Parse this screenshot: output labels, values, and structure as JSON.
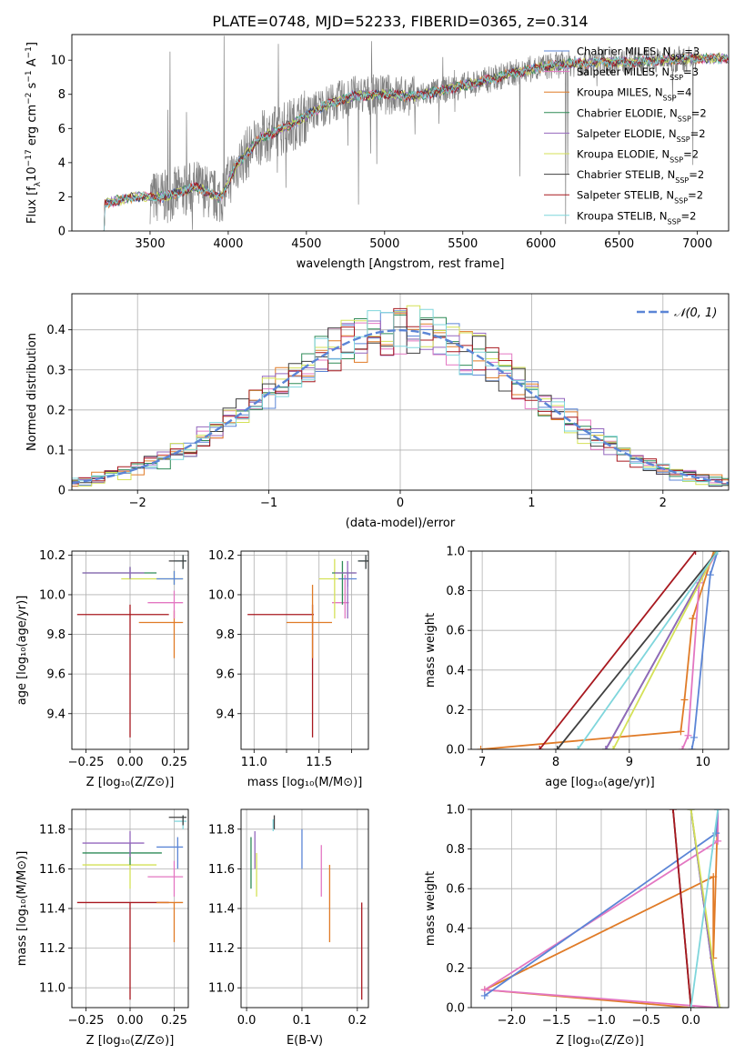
{
  "figure": {
    "title": "PLATE=0748, MJD=52233, FIBERID=0365, z=0.314"
  },
  "colors": {
    "data": "#808080",
    "gauss": "#5b85d6",
    "chabrier_miles": "#5b85d6",
    "salpeter_miles": "#e377c2",
    "kroupa_miles": "#e07b27",
    "chabrier_elodie": "#2e8b57",
    "salpeter_elodie": "#9467bd",
    "kroupa_elodie": "#d4e157",
    "chabrier_stelib": "#404040",
    "salpeter_stelib": "#a8181f",
    "kroupa_stelib": "#7fd6dc"
  },
  "legend_spectrum": [
    {
      "label": "Chabrier MILES, N",
      "sub": "SSP",
      "suffix": "=3",
      "color": "#5b85d6"
    },
    {
      "label": "Salpeter MILES, N",
      "sub": "SSP",
      "suffix": "=3",
      "color": "#e377c2"
    },
    {
      "label": "Kroupa MILES, N",
      "sub": "SSP",
      "suffix": "=4",
      "color": "#e07b27"
    },
    {
      "label": "Chabrier ELODIE, N",
      "sub": "SSP",
      "suffix": "=2",
      "color": "#2e8b57"
    },
    {
      "label": "Salpeter ELODIE, N",
      "sub": "SSP",
      "suffix": "=2",
      "color": "#9467bd"
    },
    {
      "label": "Kroupa ELODIE, N",
      "sub": "SSP",
      "suffix": "=2",
      "color": "#d4e157"
    },
    {
      "label": "Chabrier STELIB, N",
      "sub": "SSP",
      "suffix": "=2",
      "color": "#404040"
    },
    {
      "label": "Salpeter STELIB, N",
      "sub": "SSP",
      "suffix": "=2",
      "color": "#a8181f"
    },
    {
      "label": "Kroupa STELIB, N",
      "sub": "SSP",
      "suffix": "=2",
      "color": "#7fd6dc"
    }
  ],
  "legend_hist": {
    "label": "𝒩(0, 1)"
  },
  "chart_data": [
    {
      "type": "line",
      "name": "spectrum",
      "xlabel": "wavelength [Angstrom, rest frame]",
      "ylabel_parts": [
        "Flux [f",
        "λ",
        "10",
        "−17",
        " erg cm",
        "−2",
        " s",
        "−1",
        " A",
        "−1",
        "]"
      ],
      "xlim": [
        3000,
        7200
      ],
      "ylim": [
        0,
        11.5
      ],
      "xticks": [
        3500,
        4000,
        4500,
        5000,
        5500,
        6000,
        6500,
        7000
      ],
      "yticks": [
        0,
        2,
        4,
        6,
        8,
        10
      ],
      "grid": false,
      "legend_position": "upper right",
      "continuum_x": [
        3200,
        3400,
        3600,
        3800,
        3950,
        4050,
        4200,
        4400,
        4600,
        4800,
        5000,
        5200,
        5400,
        5600,
        5800,
        6000,
        6200,
        6400,
        6600,
        6800,
        7000
      ],
      "continuum_y": [
        1.6,
        2.0,
        2.0,
        2.6,
        1.9,
        3.8,
        5.4,
        6.2,
        7.3,
        7.9,
        8.0,
        7.9,
        8.3,
        8.7,
        9.2,
        9.6,
        9.8,
        9.9,
        9.9,
        10.0,
        10.1
      ],
      "data_start": 3500,
      "data_end": 7000
    },
    {
      "type": "histogram",
      "name": "residuals",
      "xlabel": "(data-model)/error",
      "ylabel": "Normed distribution",
      "xlim": [
        -2.5,
        2.5
      ],
      "ylim": [
        0,
        0.49
      ],
      "xticks": [
        -2,
        -1,
        0,
        1,
        2
      ],
      "yticks": [
        0.0,
        0.1,
        0.2,
        0.3,
        0.4
      ],
      "grid": true,
      "legend_position": "upper right",
      "bin_width": 0.1
    },
    {
      "type": "scatter",
      "name": "age-vs-Z",
      "xlabel": "Z [log₁₀(Z/Z⊙)]",
      "ylabel": "age  [log₁₀(age/yr)]",
      "xlim": [
        -0.33,
        0.33
      ],
      "ylim": [
        9.22,
        10.22
      ],
      "xticks": [
        -0.25,
        0.0,
        0.25
      ],
      "xticklabels": [
        "−0.25",
        "0.00",
        "0.25"
      ],
      "yticks": [
        9.4,
        9.6,
        9.8,
        10.0,
        10.2
      ],
      "yticklabels": [
        "9.4",
        "9.6",
        "9.8",
        "10.0",
        "10.2"
      ],
      "grid": true,
      "points": [
        {
          "x": 0.0,
          "xlo": -0.3,
          "xhi": 0.22,
          "y": 9.9,
          "ylo": 9.28,
          "yhi": 9.95,
          "color": "#a8181f"
        },
        {
          "x": 0.25,
          "xlo": 0.05,
          "xhi": 0.3,
          "y": 9.86,
          "ylo": 9.68,
          "yhi": 9.92,
          "color": "#e07b27"
        },
        {
          "x": 0.25,
          "xlo": 0.1,
          "xhi": 0.3,
          "y": 9.96,
          "ylo": 9.88,
          "yhi": 10.02,
          "color": "#e377c2"
        },
        {
          "x": 0.25,
          "xlo": -0.05,
          "xhi": 0.3,
          "y": 10.08,
          "ylo": 10.05,
          "yhi": 10.12,
          "color": "#d4e157"
        },
        {
          "x": 0.25,
          "xlo": 0.15,
          "xhi": 0.3,
          "y": 10.08,
          "ylo": 10.05,
          "yhi": 10.12,
          "color": "#5b85d6"
        },
        {
          "x": 0.0,
          "xlo": -0.27,
          "xhi": 0.15,
          "y": 10.11,
          "ylo": 10.08,
          "yhi": 10.14,
          "color": "#2e8b57"
        },
        {
          "x": 0.0,
          "xlo": -0.27,
          "xhi": 0.08,
          "y": 10.11,
          "ylo": 10.08,
          "yhi": 10.14,
          "color": "#9467bd"
        },
        {
          "x": 0.3,
          "xlo": 0.25,
          "xhi": 0.32,
          "y": 10.17,
          "ylo": 10.13,
          "yhi": 10.2,
          "color": "#7fd6dc"
        },
        {
          "x": 0.3,
          "xlo": 0.22,
          "xhi": 0.32,
          "y": 10.17,
          "ylo": 10.13,
          "yhi": 10.2,
          "color": "#404040"
        }
      ]
    },
    {
      "type": "scatter",
      "name": "age-vs-mass",
      "xlabel": "mass [log₁₀(M/M⊙)]",
      "ylabel": "",
      "xlim": [
        10.9,
        11.88
      ],
      "ylim": [
        9.22,
        10.22
      ],
      "xticks": [
        11.0,
        11.25,
        11.5,
        11.75
      ],
      "xticklabels": [
        "11.0",
        "",
        "11.5",
        ""
      ],
      "yticks": [
        9.4,
        9.6,
        9.8,
        10.0,
        10.2
      ],
      "yticklabels": [
        "9.4",
        "9.6",
        "9.8",
        "10.0",
        "10.2"
      ],
      "grid": true,
      "points": [
        {
          "x": 11.45,
          "xlo": 10.95,
          "xhi": 11.46,
          "y": 9.9,
          "ylo": 9.28,
          "yhi": 9.95,
          "color": "#a8181f"
        },
        {
          "x": 11.45,
          "xlo": 11.25,
          "xhi": 11.6,
          "y": 9.86,
          "ylo": 9.68,
          "yhi": 10.05,
          "color": "#e07b27"
        },
        {
          "x": 11.7,
          "xlo": 11.6,
          "xhi": 11.73,
          "y": 9.96,
          "ylo": 9.88,
          "yhi": 10.1,
          "color": "#e377c2"
        },
        {
          "x": 11.62,
          "xlo": 11.5,
          "xhi": 11.66,
          "y": 10.08,
          "ylo": 9.88,
          "yhi": 10.18,
          "color": "#d4e157"
        },
        {
          "x": 11.72,
          "xlo": 11.65,
          "xhi": 11.79,
          "y": 10.08,
          "ylo": 10.04,
          "yhi": 10.12,
          "color": "#5b85d6"
        },
        {
          "x": 11.68,
          "xlo": 11.6,
          "xhi": 11.78,
          "y": 10.11,
          "ylo": 9.95,
          "yhi": 10.17,
          "color": "#2e8b57"
        },
        {
          "x": 11.72,
          "xlo": 11.62,
          "xhi": 11.79,
          "y": 10.11,
          "ylo": 9.88,
          "yhi": 10.17,
          "color": "#9467bd"
        },
        {
          "x": 11.86,
          "xlo": 11.8,
          "xhi": 11.88,
          "y": 10.17,
          "ylo": 10.13,
          "yhi": 10.2,
          "color": "#7fd6dc"
        },
        {
          "x": 11.86,
          "xlo": 11.8,
          "xhi": 11.88,
          "y": 10.17,
          "ylo": 10.13,
          "yhi": 10.2,
          "color": "#404040"
        }
      ]
    },
    {
      "type": "line",
      "name": "weight-vs-age",
      "xlabel": "age  [log₁₀(age/yr)]",
      "ylabel": "mass weight",
      "xlim": [
        6.85,
        10.35
      ],
      "ylim": [
        0,
        1
      ],
      "xticks": [
        7,
        8,
        9,
        10
      ],
      "xticklabels": [
        "7",
        "8",
        "9",
        "10"
      ],
      "yticks": [
        0,
        0.2,
        0.4,
        0.6,
        0.8,
        1.0
      ],
      "yticklabels": [
        "0.0",
        "0.2",
        "0.4",
        "0.6",
        "0.8",
        "1.0"
      ],
      "grid": true,
      "series": [
        {
          "color": "#e07b27",
          "points": [
            [
              6.98,
              0.0
            ],
            [
              9.7,
              0.09
            ],
            [
              9.75,
              0.25
            ],
            [
              9.86,
              0.66
            ],
            [
              10.15,
              1.0
            ]
          ]
        },
        {
          "color": "#e377c2",
          "points": [
            [
              9.72,
              0.0
            ],
            [
              9.8,
              0.07
            ],
            [
              9.95,
              0.84
            ],
            [
              10.2,
              1.0
            ]
          ]
        },
        {
          "color": "#5b85d6",
          "points": [
            [
              9.85,
              0.0
            ],
            [
              9.88,
              0.06
            ],
            [
              10.1,
              0.88
            ],
            [
              10.2,
              1.0
            ]
          ]
        },
        {
          "color": "#2e8b57",
          "points": [
            [
              8.68,
              0.0
            ],
            [
              10.18,
              1.0
            ]
          ]
        },
        {
          "color": "#9467bd",
          "points": [
            [
              8.68,
              0.0
            ],
            [
              10.18,
              1.0
            ]
          ]
        },
        {
          "color": "#d4e157",
          "points": [
            [
              8.78,
              0.0
            ],
            [
              10.18,
              1.0
            ]
          ]
        },
        {
          "color": "#404040",
          "points": [
            [
              8.02,
              0.0
            ],
            [
              10.2,
              1.0
            ]
          ]
        },
        {
          "color": "#a8181f",
          "points": [
            [
              7.78,
              0.0
            ],
            [
              9.9,
              1.0
            ]
          ]
        },
        {
          "color": "#7fd6dc",
          "points": [
            [
              8.3,
              0.0
            ],
            [
              10.2,
              1.0
            ]
          ]
        }
      ]
    },
    {
      "type": "scatter",
      "name": "mass-vs-Z",
      "xlabel": "Z [log₁₀(Z/Z⊙)]",
      "ylabel": "mass [log₁₀(M/M⊙)]",
      "xlim": [
        -0.33,
        0.33
      ],
      "ylim": [
        10.9,
        11.9
      ],
      "xticks": [
        -0.25,
        0.0,
        0.25
      ],
      "xticklabels": [
        "−0.25",
        "0.00",
        "0.25"
      ],
      "yticks": [
        11.0,
        11.2,
        11.4,
        11.6,
        11.8
      ],
      "yticklabels": [
        "11.0",
        "11.2",
        "11.4",
        "11.6",
        "11.8"
      ],
      "grid": true,
      "points": [
        {
          "x": 0.0,
          "xlo": -0.3,
          "xhi": 0.22,
          "y": 11.43,
          "ylo": 10.94,
          "yhi": 11.43,
          "color": "#a8181f"
        },
        {
          "x": 0.25,
          "xlo": 0.15,
          "xhi": 0.3,
          "y": 11.43,
          "ylo": 11.23,
          "yhi": 11.43,
          "color": "#e07b27"
        },
        {
          "x": 0.25,
          "xlo": 0.1,
          "xhi": 0.3,
          "y": 11.56,
          "ylo": 11.46,
          "yhi": 11.64,
          "color": "#e377c2"
        },
        {
          "x": 0.0,
          "xlo": -0.27,
          "xhi": 0.15,
          "y": 11.62,
          "ylo": 11.5,
          "yhi": 11.68,
          "color": "#d4e157"
        },
        {
          "x": 0.0,
          "xlo": -0.27,
          "xhi": 0.18,
          "y": 11.68,
          "ylo": 11.62,
          "yhi": 11.73,
          "color": "#2e8b57"
        },
        {
          "x": 0.0,
          "xlo": -0.27,
          "xhi": 0.08,
          "y": 11.73,
          "ylo": 11.66,
          "yhi": 11.79,
          "color": "#9467bd"
        },
        {
          "x": 0.27,
          "xlo": 0.15,
          "xhi": 0.3,
          "y": 11.71,
          "ylo": 11.6,
          "yhi": 11.76,
          "color": "#5b85d6"
        },
        {
          "x": 0.3,
          "xlo": 0.25,
          "xhi": 0.32,
          "y": 11.84,
          "ylo": 11.8,
          "yhi": 11.87,
          "color": "#7fd6dc"
        },
        {
          "x": 0.3,
          "xlo": 0.22,
          "xhi": 0.32,
          "y": 11.86,
          "ylo": 11.82,
          "yhi": 11.87,
          "color": "#404040"
        }
      ]
    },
    {
      "type": "scatter",
      "name": "mass-vs-EBV",
      "xlabel": "E(B-V)",
      "ylabel": "",
      "xlim": [
        -0.01,
        0.22
      ],
      "ylim": [
        10.9,
        11.9
      ],
      "xticks": [
        0.0,
        0.1,
        0.2
      ],
      "xticklabels": [
        "0.0",
        "0.1",
        "0.2"
      ],
      "yticks": [
        11.0,
        11.2,
        11.4,
        11.6,
        11.8
      ],
      "yticklabels": [
        "11.0",
        "11.2",
        "11.4",
        "11.6",
        "11.8"
      ],
      "grid": true,
      "points": [
        {
          "x": 0.208,
          "ylo": 10.94,
          "yhi": 11.43,
          "color": "#a8181f"
        },
        {
          "x": 0.15,
          "ylo": 11.23,
          "yhi": 11.62,
          "color": "#e07b27"
        },
        {
          "x": 0.135,
          "ylo": 11.46,
          "yhi": 11.72,
          "color": "#e377c2"
        },
        {
          "x": 0.1,
          "ylo": 11.6,
          "yhi": 11.8,
          "color": "#5b85d6"
        },
        {
          "x": 0.018,
          "ylo": 11.46,
          "yhi": 11.68,
          "color": "#d4e157"
        },
        {
          "x": 0.008,
          "ylo": 11.5,
          "yhi": 11.76,
          "color": "#2e8b57"
        },
        {
          "x": 0.015,
          "ylo": 11.6,
          "yhi": 11.79,
          "color": "#9467bd"
        },
        {
          "x": 0.048,
          "ylo": 11.79,
          "yhi": 11.85,
          "color": "#7fd6dc"
        },
        {
          "x": 0.05,
          "ylo": 11.8,
          "yhi": 11.87,
          "color": "#404040"
        }
      ]
    },
    {
      "type": "line",
      "name": "weight-vs-Z",
      "xlabel": "Z [log₁₀(Z/Z⊙)]",
      "ylabel": "mass weight",
      "xlim": [
        -2.45,
        0.42
      ],
      "ylim": [
        0,
        1
      ],
      "xticks": [
        -2.0,
        -1.5,
        -1.0,
        -0.5,
        0.0
      ],
      "xticklabels": [
        "−2.0",
        "−1.5",
        "−1.0",
        "−0.5",
        "0.0"
      ],
      "yticks": [
        0,
        0.2,
        0.4,
        0.6,
        0.8,
        1.0
      ],
      "yticklabels": [
        "0.0",
        "0.2",
        "0.4",
        "0.6",
        "0.8",
        "1.0"
      ],
      "grid": true,
      "series": [
        {
          "color": "#e07b27",
          "points": [
            [
              0.0,
              0.0
            ],
            [
              -2.3,
              0.09
            ],
            [
              0.25,
              0.66
            ],
            [
              0.25,
              0.25
            ],
            [
              0.3,
              1.0
            ]
          ]
        },
        {
          "color": "#e377c2",
          "points": [
            [
              0.3,
              0.0
            ],
            [
              -2.3,
              0.09
            ],
            [
              0.3,
              0.84
            ],
            [
              0.3,
              1.0
            ]
          ]
        },
        {
          "color": "#5b85d6",
          "points": [
            [
              -2.3,
              0.06
            ],
            [
              0.28,
              0.88
            ],
            [
              0.3,
              1.0
            ]
          ]
        },
        {
          "color": "#2e8b57",
          "points": [
            [
              0.0,
              1.0
            ],
            [
              0.3,
              0.0
            ]
          ]
        },
        {
          "color": "#9467bd",
          "points": [
            [
              0.0,
              1.0
            ],
            [
              0.3,
              0.0
            ]
          ]
        },
        {
          "color": "#d4e157",
          "points": [
            [
              0.0,
              1.0
            ],
            [
              0.32,
              0.0
            ]
          ]
        },
        {
          "color": "#404040",
          "points": [
            [
              -0.2,
              1.0
            ],
            [
              0.0,
              0.0
            ]
          ]
        },
        {
          "color": "#a8181f",
          "points": [
            [
              -0.2,
              1.0
            ],
            [
              0.0,
              0.0
            ]
          ]
        },
        {
          "color": "#7fd6dc",
          "points": [
            [
              0.3,
              1.0
            ],
            [
              0.0,
              0.0
            ]
          ]
        }
      ]
    }
  ]
}
